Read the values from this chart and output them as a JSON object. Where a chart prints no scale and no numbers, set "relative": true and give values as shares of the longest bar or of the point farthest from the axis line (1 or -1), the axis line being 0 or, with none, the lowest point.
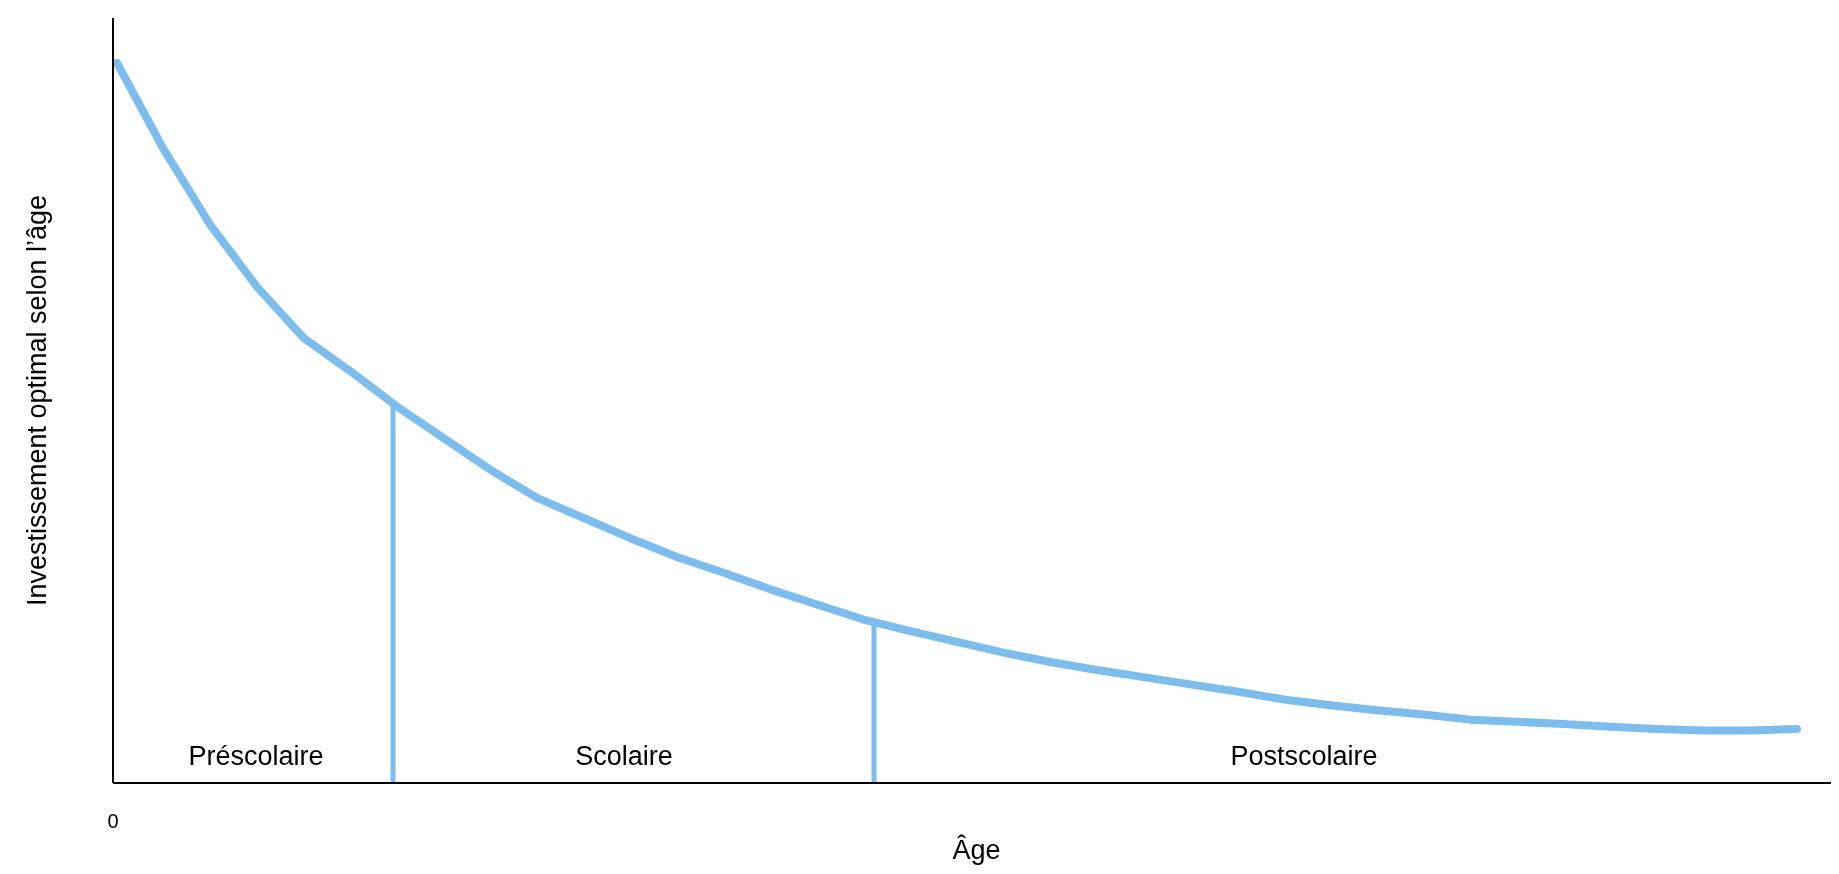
{
  "chart_data": {
    "type": "line",
    "relative": true,
    "xlabel": "Âge",
    "ylabel": "Investissement optimal selon l’âge",
    "annotations": [
      "0",
      "Préscolaire",
      "Scolaire",
      "Postscolaire"
    ],
    "categories": [
      null,
      null,
      null,
      null,
      null,
      null,
      null,
      null,
      null,
      null,
      null,
      null,
      null,
      null,
      null,
      null,
      null,
      null,
      null,
      null,
      null,
      null,
      null,
      null,
      null,
      null,
      null,
      null,
      null,
      null,
      null,
      null,
      null,
      null,
      null,
      null,
      null
    ],
    "series": [
      {
        "color": "#7dbdee",
        "values": [
          1,
          0.88,
          0.775,
          0.689,
          0.618,
          0.572,
          0.523,
          0.479,
          0.435,
          0.396,
          0.368,
          0.34,
          0.314,
          0.292,
          0.269,
          0.248,
          0.227,
          0.211,
          0.196,
          0.181,
          0.168,
          0.157,
          0.147,
          0.137,
          0.127,
          0.116,
          0.108,
          0.101,
          0.095,
          0.088,
          0.085,
          0.082,
          0.078,
          0.075,
          0.073,
          0.073,
          0.075
        ]
      }
    ],
    "marker": "none",
    "line_style": "solid"
  }
}
